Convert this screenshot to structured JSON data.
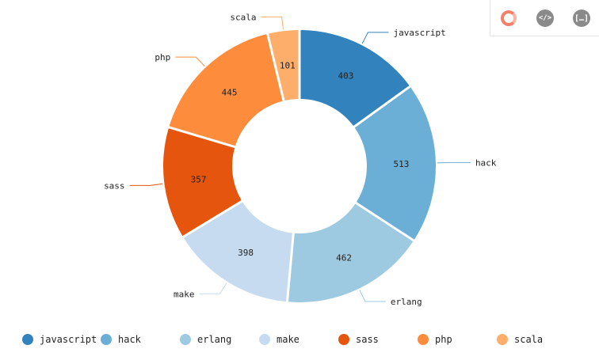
{
  "toolbar": {
    "buttons": [
      {
        "name": "donut-chart-icon"
      },
      {
        "name": "code-icon",
        "label": "</>"
      },
      {
        "name": "json-icon",
        "label": "[…]"
      }
    ]
  },
  "chart_data": {
    "type": "pie",
    "variant": "donut",
    "title": "",
    "categories": [
      "javascript",
      "hack",
      "erlang",
      "make",
      "sass",
      "php",
      "scala"
    ],
    "values": [
      403,
      513,
      462,
      398,
      357,
      445,
      101
    ],
    "colors": [
      "#3182bd",
      "#6baed6",
      "#9ecae1",
      "#c6dbef",
      "#e6550d",
      "#fd8d3c",
      "#fdae6b"
    ],
    "legend_position": "bottom",
    "show_value_labels": true,
    "show_outer_labels": true
  }
}
